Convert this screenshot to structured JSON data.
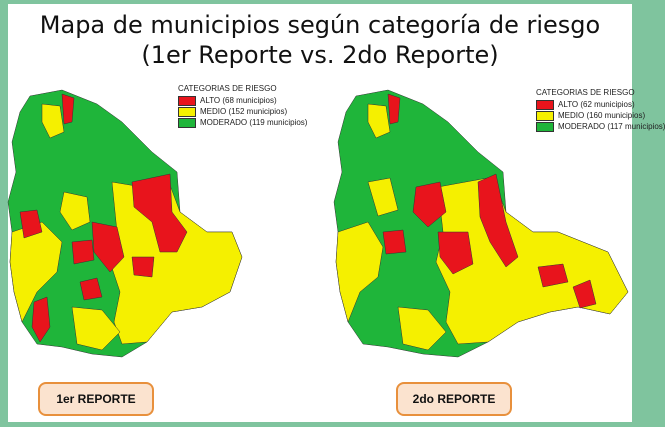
{
  "title_line1": "Mapa de municipios según categoría de riesgo",
  "title_line2": "(1er Reporte vs. 2do Reporte)",
  "colors": {
    "alto": "#e8141c",
    "medio": "#f5f000",
    "moderado": "#1fb53a"
  },
  "reports": [
    {
      "label": "1er REPORTE",
      "legend_title": "CATEGORIAS DE RIESGO",
      "items": [
        {
          "key": "alto",
          "label": "ALTO (68 municipios)"
        },
        {
          "key": "medio",
          "label": "MEDIO (152 municipios)"
        },
        {
          "key": "moderado",
          "label": "MODERADO (119 municipios)"
        }
      ]
    },
    {
      "label": "2do REPORTE",
      "legend_title": "CATEGORIAS DE RIESGO",
      "items": [
        {
          "key": "alto",
          "label": "ALTO (62 municipios)"
        },
        {
          "key": "medio",
          "label": "MEDIO (160 municipios)"
        },
        {
          "key": "moderado",
          "label": "MODERADO (117 municipios)"
        }
      ]
    }
  ]
}
